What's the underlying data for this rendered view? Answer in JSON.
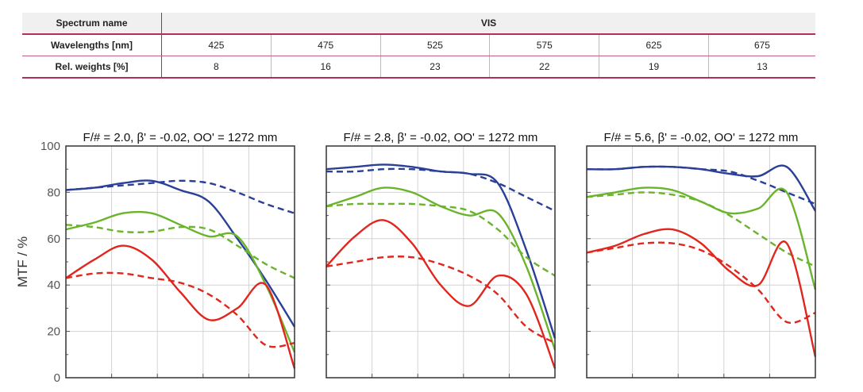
{
  "spectrum_table": {
    "header_label": "Spectrum name",
    "spectrum": "VIS",
    "wavelength_label": "Wavelengths [nm]",
    "weights_label": "Rel. weights [%]",
    "wavelengths": [
      "425",
      "475",
      "525",
      "575",
      "625",
      "675"
    ],
    "weights": [
      "8",
      "16",
      "23",
      "22",
      "19",
      "13"
    ]
  },
  "ylabel": "MTF / %",
  "colors": {
    "blue": "#2a3f97",
    "green": "#6ab42c",
    "red": "#e0261d"
  },
  "chart_data": [
    {
      "type": "line",
      "title": "F/# = 2.0, β' = -0.02, OO' = 1272 mm",
      "ylabel": "MTF / %",
      "ylim": [
        0,
        100
      ],
      "yticks": [
        "0",
        "20",
        "40",
        "60",
        "80",
        "100"
      ],
      "x_divisions": 5,
      "grid": true,
      "series": [
        {
          "color": "blue",
          "dash": false,
          "values": [
            81,
            82,
            84,
            85,
            81,
            76,
            60,
            42,
            22
          ]
        },
        {
          "color": "blue",
          "dash": true,
          "values": [
            81,
            82,
            83,
            84,
            85,
            84,
            80,
            75,
            71
          ]
        },
        {
          "color": "green",
          "dash": false,
          "values": [
            64,
            67,
            71,
            71,
            66,
            61,
            61,
            40,
            11
          ]
        },
        {
          "color": "green",
          "dash": true,
          "values": [
            66,
            65,
            63,
            63,
            65,
            64,
            57,
            49,
            43
          ]
        },
        {
          "color": "red",
          "dash": false,
          "values": [
            43,
            51,
            57,
            51,
            37,
            25,
            30,
            40,
            4
          ]
        },
        {
          "color": "red",
          "dash": true,
          "values": [
            43,
            45,
            45,
            43,
            41,
            36,
            27,
            14,
            15
          ]
        }
      ]
    },
    {
      "type": "line",
      "title": "F/# = 2.8, β' = -0.02, OO' = 1272 mm",
      "ylabel": "",
      "ylim": [
        0,
        100
      ],
      "yticks": [],
      "x_divisions": 5,
      "grid": true,
      "series": [
        {
          "color": "blue",
          "dash": false,
          "values": [
            90,
            91,
            92,
            91,
            89,
            88,
            84,
            55,
            17
          ]
        },
        {
          "color": "blue",
          "dash": true,
          "values": [
            89,
            89,
            90,
            90,
            89,
            88,
            84,
            78,
            72
          ]
        },
        {
          "color": "green",
          "dash": false,
          "values": [
            74,
            78,
            82,
            80,
            74,
            70,
            71,
            48,
            12
          ]
        },
        {
          "color": "green",
          "dash": true,
          "values": [
            74,
            75,
            75,
            75,
            74,
            72,
            64,
            52,
            44
          ]
        },
        {
          "color": "red",
          "dash": false,
          "values": [
            48,
            61,
            68,
            58,
            40,
            31,
            44,
            36,
            4
          ]
        },
        {
          "color": "red",
          "dash": true,
          "values": [
            48,
            50,
            52,
            52,
            49,
            44,
            36,
            22,
            15
          ]
        }
      ]
    },
    {
      "type": "line",
      "title": "F/# = 5.6, β' = -0.02, OO' = 1272 mm",
      "ylabel": "",
      "ylim": [
        0,
        100
      ],
      "yticks": [],
      "x_divisions": 5,
      "grid": true,
      "series": [
        {
          "color": "blue",
          "dash": false,
          "values": [
            90,
            90,
            91,
            91,
            90,
            88,
            87,
            91,
            72
          ]
        },
        {
          "color": "blue",
          "dash": true,
          "values": [
            90,
            90,
            91,
            91,
            90,
            89,
            85,
            80,
            75
          ]
        },
        {
          "color": "green",
          "dash": false,
          "values": [
            78,
            80,
            82,
            81,
            76,
            71,
            73,
            80,
            38
          ]
        },
        {
          "color": "green",
          "dash": true,
          "values": [
            78,
            79,
            80,
            79,
            76,
            70,
            62,
            54,
            48
          ]
        },
        {
          "color": "red",
          "dash": false,
          "values": [
            54,
            57,
            62,
            64,
            58,
            46,
            40,
            58,
            9
          ]
        },
        {
          "color": "red",
          "dash": true,
          "values": [
            54,
            56,
            58,
            58,
            55,
            48,
            38,
            24,
            28
          ]
        }
      ]
    }
  ]
}
